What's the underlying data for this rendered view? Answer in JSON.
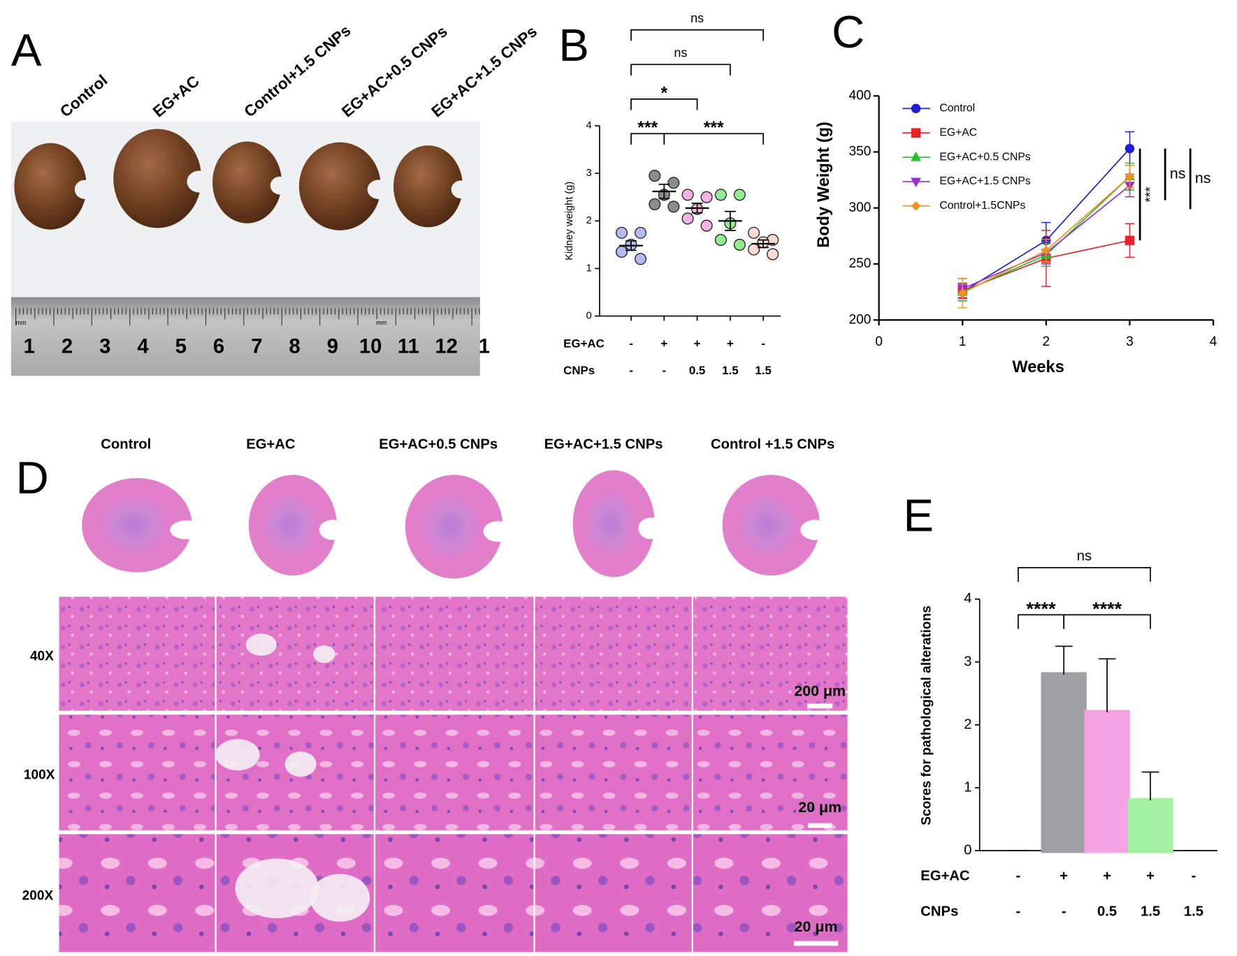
{
  "panel_labels": [
    "A",
    "B",
    "C",
    "D",
    "E"
  ],
  "panel_a": {
    "groups": [
      "Control",
      "EG+AC",
      "Control+1.5 CNPs",
      "EG+AC+0.5 CNPs",
      "EG+AC+1.5 CNPs"
    ],
    "ruler_units": [
      "mm",
      "mm"
    ],
    "ruler_numbers": [
      "1",
      "2",
      "3",
      "4",
      "5",
      "6",
      "7",
      "8",
      "9",
      "10",
      "11",
      "12",
      "1"
    ]
  },
  "chart_data": [
    {
      "type": "dot",
      "ylabel": "Kidney weight (g)",
      "ylim": [
        0,
        4
      ],
      "yticks": [
        0,
        1,
        2,
        3,
        4
      ],
      "values": [
        1.48,
        2.62,
        2.27,
        2.0,
        1.52
      ],
      "sem": [
        0.1,
        0.15,
        0.1,
        0.2,
        0.08
      ],
      "points": [
        [
          1.75,
          1.75,
          1.5,
          1.35,
          1.2
        ],
        [
          2.95,
          2.8,
          2.55,
          2.35,
          2.3
        ],
        [
          2.55,
          2.5,
          2.25,
          2.05,
          1.9
        ],
        [
          2.55,
          2.55,
          1.95,
          1.6,
          1.5
        ],
        [
          1.75,
          1.6,
          1.55,
          1.4,
          1.3
        ]
      ],
      "colors": [
        "#b3b9f2",
        "#8c8c8c",
        "#f4b3e4",
        "#93eb93",
        "#f8dcd4"
      ],
      "rows": [
        {
          "label": "EG+AC",
          "values": [
            "-",
            "+",
            "+",
            "+",
            "-"
          ]
        },
        {
          "label": "CNPs",
          "values": [
            "-",
            "-",
            "0.5",
            "1.5",
            "1.5"
          ]
        }
      ],
      "comparisons": [
        {
          "groups": [
            0,
            1
          ],
          "label": "***"
        },
        {
          "groups": [
            1,
            4
          ],
          "label": "***"
        },
        {
          "groups": [
            0,
            2
          ],
          "label": "*"
        },
        {
          "groups": [
            0,
            3
          ],
          "label": "ns"
        },
        {
          "groups": [
            0,
            4
          ],
          "label": "ns"
        }
      ]
    },
    {
      "type": "line",
      "xlabel": "Weeks",
      "ylabel": "Body Weight (g)",
      "x": [
        1,
        2,
        3
      ],
      "xlim": [
        0,
        4
      ],
      "xticks": [
        0,
        1,
        2,
        3,
        4
      ],
      "ylim": [
        200,
        400
      ],
      "yticks": [
        200,
        250,
        300,
        350,
        400
      ],
      "series": [
        {
          "name": "Control",
          "color": "#1f1fd9",
          "marker": "circle",
          "values": [
            225,
            271,
            353
          ],
          "errors": [
            8,
            16,
            15
          ]
        },
        {
          "name": "EG+AC",
          "color": "#e8242a",
          "marker": "square",
          "values": [
            226,
            255,
            271
          ],
          "errors": [
            6,
            25,
            15
          ]
        },
        {
          "name": "EG+AC+0.5 CNPs",
          "color": "#22c02a",
          "marker": "triangle",
          "values": [
            225,
            258,
            328
          ],
          "errors": [
            8,
            10,
            12
          ]
        },
        {
          "name": "EG+AC+1.5 CNPs",
          "color": "#9a2ed6",
          "marker": "triangle-down",
          "values": [
            228,
            260,
            320
          ],
          "errors": [
            9,
            10,
            10
          ]
        },
        {
          "name": "Control+1.5CNPs",
          "color": "#f0901e",
          "marker": "diamond",
          "values": [
            224,
            262,
            328
          ],
          "errors": [
            13,
            10,
            10
          ]
        }
      ],
      "comparisons": [
        {
          "series": [
            0,
            1
          ],
          "label": "***"
        },
        {
          "series": [
            0,
            2
          ],
          "label": "ns"
        },
        {
          "series": [
            0,
            3
          ],
          "label": "ns"
        }
      ]
    },
    {
      "type": "bar",
      "ylabel": "Scores for pathological alterations",
      "ylim": [
        0,
        4
      ],
      "yticks": [
        0,
        1,
        2,
        3,
        4
      ],
      "values": [
        0,
        2.8,
        2.2,
        0.8,
        0
      ],
      "errors": [
        0,
        0.45,
        0.85,
        0.45,
        0
      ],
      "colors": [
        "#8e3fb8",
        "#a0a0a4",
        "#f3a3e3",
        "#a3f2a3",
        "#fbd6d6"
      ],
      "rows": [
        {
          "label": "EG+AC",
          "values": [
            "-",
            "+",
            "+",
            "+",
            "-"
          ]
        },
        {
          "label": "CNPs",
          "values": [
            "-",
            "-",
            "0.5",
            "1.5",
            "1.5"
          ]
        }
      ],
      "comparisons": [
        {
          "groups": [
            0,
            1
          ],
          "label": "****"
        },
        {
          "groups": [
            1,
            3
          ],
          "label": "****"
        },
        {
          "groups": [
            0,
            3
          ],
          "label": "ns"
        }
      ]
    }
  ],
  "panel_d": {
    "groups": [
      "Control",
      "EG+AC",
      "EG+AC+0.5 CNPs",
      "EG+AC+1.5 CNPs",
      "Control +1.5 CNPs"
    ],
    "magnifications": [
      "40X",
      "100X",
      "200X"
    ],
    "scale_bars": [
      "200 μm",
      "20 μm",
      "20 μm"
    ]
  }
}
